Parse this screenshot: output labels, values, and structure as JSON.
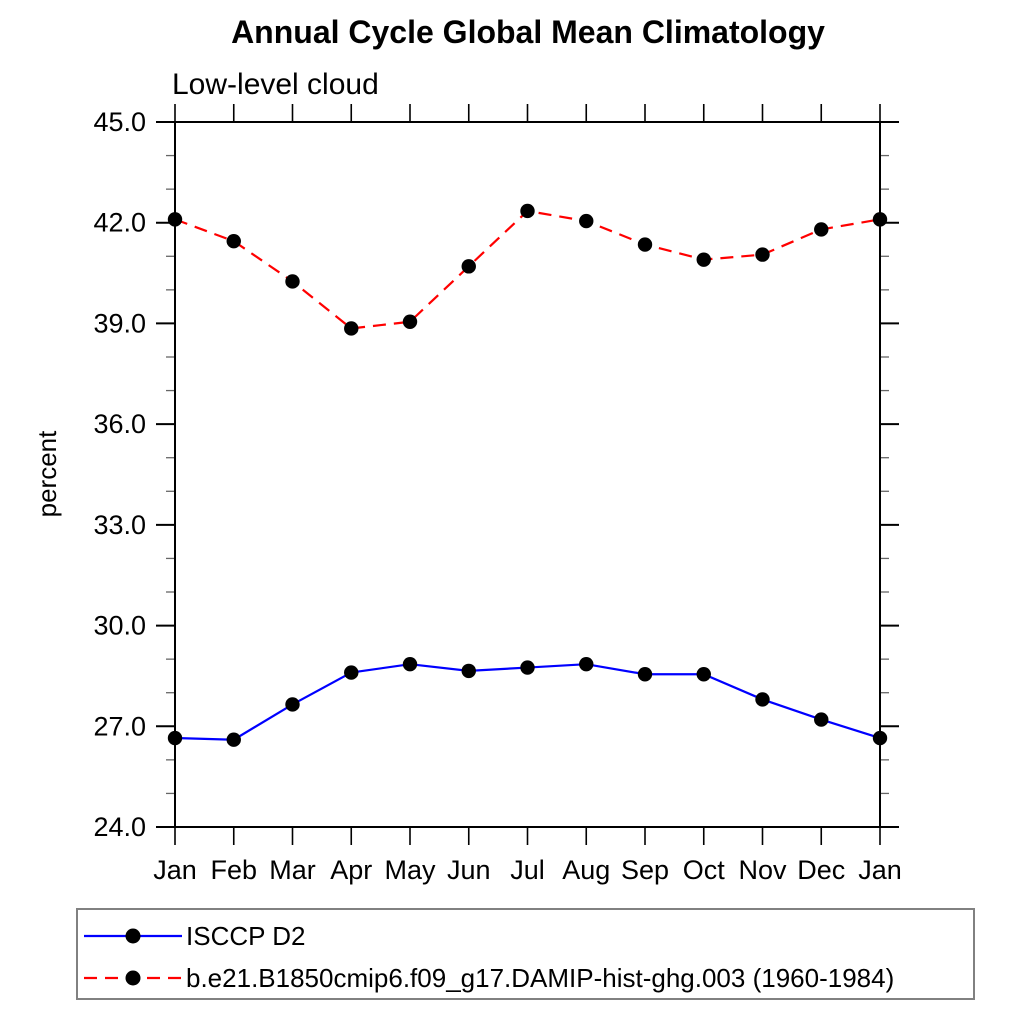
{
  "title": "Annual Cycle Global Mean Climatology",
  "subtitle": "Low-level cloud",
  "colors": {
    "obs_line": "#0000ff",
    "model_line": "#ff0000",
    "marker": "#000000",
    "axis": "#000000",
    "minor_tick": "#666666",
    "legend_border": "#818181"
  },
  "chart_data": {
    "type": "line",
    "title": "Annual Cycle Global Mean Climatology",
    "subtitle": "Low-level cloud",
    "xlabel": "",
    "ylabel": "percent",
    "categories": [
      "Jan",
      "Feb",
      "Mar",
      "Apr",
      "May",
      "Jun",
      "Jul",
      "Aug",
      "Sep",
      "Oct",
      "Nov",
      "Dec",
      "Jan"
    ],
    "ylim": [
      24.0,
      45.0
    ],
    "yticks": [
      {
        "v": 24.0,
        "label": "24.0"
      },
      {
        "v": 27.0,
        "label": "27.0"
      },
      {
        "v": 30.0,
        "label": "30.0"
      },
      {
        "v": 33.0,
        "label": "33.0"
      },
      {
        "v": 36.0,
        "label": "36.0"
      },
      {
        "v": 39.0,
        "label": "39.0"
      },
      {
        "v": 42.0,
        "label": "42.0"
      },
      {
        "v": 45.0,
        "label": "45.0"
      }
    ],
    "ytick_minor_step": 1.0,
    "grid": false,
    "legend_position": "bottom-left",
    "series": [
      {
        "name": "ISCCP D2",
        "color": "#0000ff",
        "line_style": "solid",
        "marker": "filled-circle",
        "values": [
          26.65,
          26.6,
          27.65,
          28.6,
          28.85,
          28.65,
          28.75,
          28.85,
          28.55,
          28.55,
          27.8,
          27.2,
          26.65
        ]
      },
      {
        "name": "b.e21.B1850cmip6.f09_g17.DAMIP-hist-ghg.003 (1960-1984)",
        "color": "#ff0000",
        "line_style": "dashed",
        "marker": "filled-circle",
        "values": [
          42.1,
          41.45,
          40.25,
          38.85,
          39.05,
          40.7,
          42.35,
          42.05,
          41.35,
          40.9,
          41.05,
          41.8,
          42.1
        ]
      }
    ]
  }
}
